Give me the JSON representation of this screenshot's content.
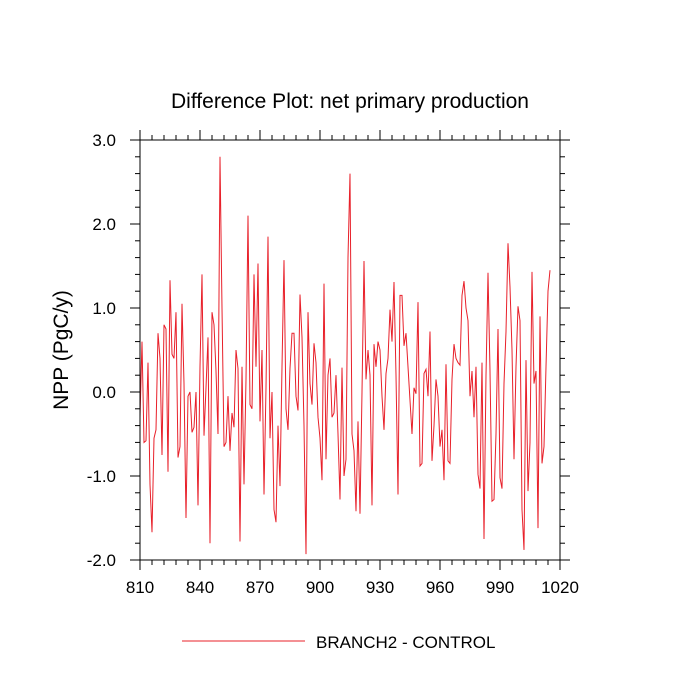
{
  "colors": {
    "series": "#e8202a",
    "axis": "#000000",
    "background": "#ffffff"
  },
  "chart_data": {
    "type": "line",
    "title": "Difference Plot: net primary production",
    "xlabel": "",
    "ylabel": "NPP  (PgC/y)",
    "xlim": [
      810,
      1020
    ],
    "ylim": [
      -2.0,
      3.0
    ],
    "xticks": [
      810,
      840,
      870,
      900,
      930,
      960,
      990,
      1020
    ],
    "xtick_labels": [
      "810",
      "840",
      "870",
      "900",
      "930",
      "960",
      "990",
      "1020"
    ],
    "yticks": [
      -2.0,
      -1.0,
      0.0,
      1.0,
      2.0,
      3.0
    ],
    "ytick_labels": [
      "-2.0",
      "-1.0",
      "0.0",
      "1.0",
      "2.0",
      "3.0"
    ],
    "legend": {
      "position": "bottom-center",
      "entries": [
        "BRANCH2 - CONTROL"
      ]
    },
    "grid": false,
    "series": [
      {
        "name": "BRANCH2 - CONTROL",
        "x_start": 810,
        "x_step": 1,
        "values": [
          -0.3,
          0.6,
          -0.6,
          -0.58,
          0.35,
          -1.1,
          -1.67,
          -0.55,
          -0.45,
          0.7,
          0.4,
          -0.75,
          0.8,
          0.75,
          -0.95,
          1.33,
          0.45,
          0.4,
          0.95,
          -0.78,
          -0.65,
          1.05,
          0.1,
          -1.5,
          -0.05,
          0.0,
          -0.48,
          -0.42,
          0.0,
          -1.35,
          0.3,
          1.4,
          -0.52,
          0.05,
          0.65,
          -1.8,
          0.95,
          0.8,
          0.25,
          -0.5,
          2.8,
          1.0,
          -0.65,
          -0.6,
          -0.05,
          -0.7,
          -0.25,
          -0.42,
          0.5,
          0.28,
          -1.78,
          0.3,
          -1.1,
          0.15,
          2.1,
          -0.15,
          -0.2,
          1.4,
          0.3,
          1.53,
          -0.35,
          0.5,
          -1.22,
          0.05,
          1.85,
          -0.55,
          0.0,
          -1.4,
          -1.55,
          -0.4,
          -1.12,
          0.3,
          1.57,
          -0.2,
          -0.45,
          0.28,
          0.7,
          0.7,
          -0.05,
          -0.22,
          1.16,
          0.65,
          -0.4,
          -1.93,
          0.95,
          0.1,
          -0.15,
          0.58,
          0.35,
          -0.3,
          -0.55,
          -1.05,
          1.29,
          -0.8,
          0.2,
          0.4,
          -0.3,
          -0.25,
          0.2,
          -0.5,
          -1.28,
          0.29,
          -1.0,
          -0.8,
          1.6,
          2.6,
          -0.5,
          -0.7,
          -1.42,
          -0.35,
          -1.45,
          0.0,
          1.56,
          0.15,
          0.5,
          0.2,
          -1.35,
          0.57,
          0.3,
          0.6,
          0.5,
          -0.05,
          -0.45,
          0.22,
          0.4,
          0.98,
          0.6,
          1.31,
          0.2,
          -1.22,
          1.15,
          1.15,
          0.55,
          0.7,
          0.3,
          -0.1,
          -0.5,
          0.05,
          -0.02,
          1.07,
          -0.88,
          -0.85,
          0.22,
          0.27,
          -0.05,
          0.72,
          -0.82,
          -0.4,
          0.15,
          -0.05,
          -0.65,
          -0.45,
          -1.05,
          0.33,
          -0.82,
          -0.85,
          0.15,
          0.57,
          0.4,
          0.35,
          0.32,
          1.15,
          1.32,
          1.0,
          0.85,
          -0.05,
          0.25,
          -0.3,
          0.3,
          -0.98,
          -1.15,
          0.35,
          -1.75,
          0.2,
          1.42,
          0.25,
          -1.3,
          -1.28,
          -0.5,
          0.75,
          -1.02,
          -1.15,
          0.1,
          0.72,
          1.77,
          1.25,
          0.5,
          -0.8,
          0.3,
          1.02,
          0.85,
          -1.4,
          -1.88,
          0.38,
          -1.18,
          -0.6,
          1.43,
          0.1,
          0.25,
          -1.62,
          0.9,
          -0.85,
          -0.65,
          0.3,
          1.2,
          1.45
        ]
      }
    ]
  }
}
